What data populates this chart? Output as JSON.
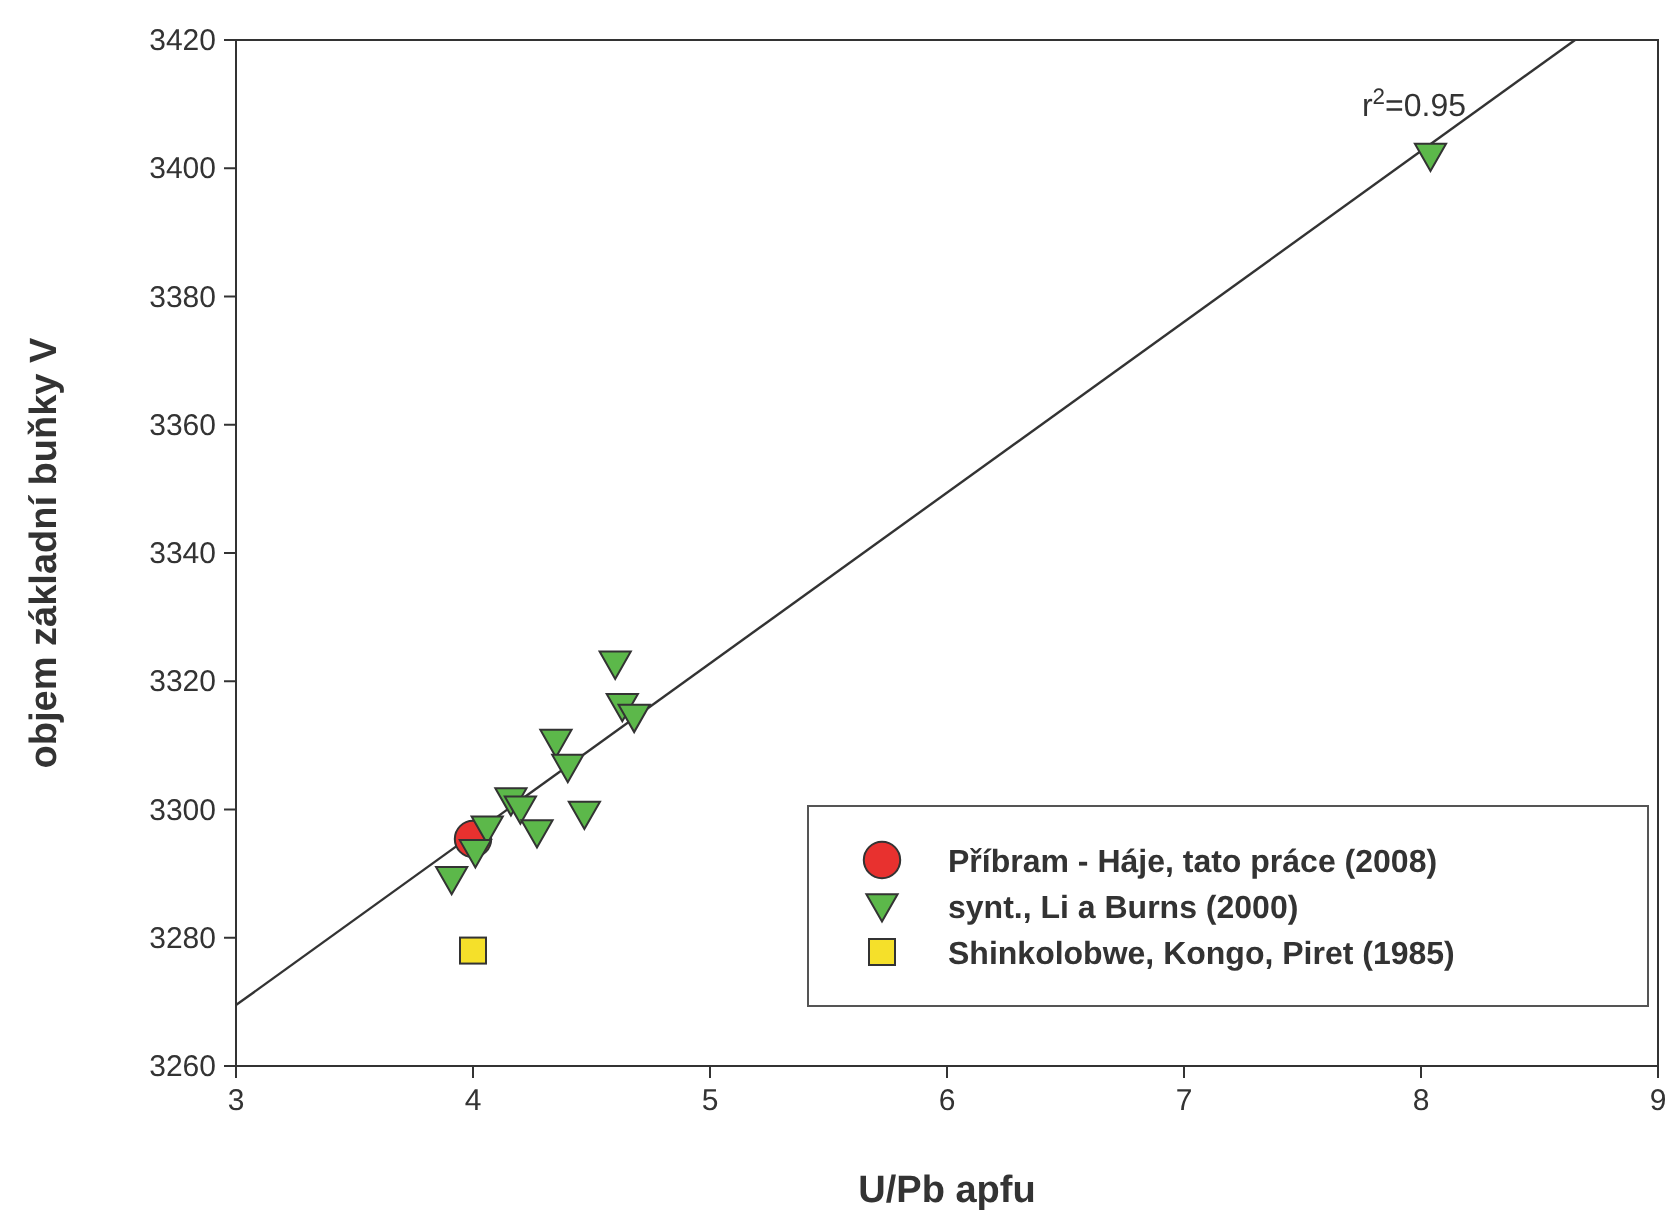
{
  "chart_data": {
    "type": "scatter",
    "xlabel": "U/Pb apfu",
    "ylabel": "objem základní buňky V",
    "xlim": [
      3,
      9
    ],
    "ylim": [
      3260,
      3420
    ],
    "xticks": [
      3,
      4,
      5,
      6,
      7,
      8,
      9
    ],
    "yticks": [
      3260,
      3280,
      3300,
      3320,
      3340,
      3360,
      3380,
      3400,
      3420
    ],
    "grid": false,
    "legend": "bottom right",
    "annotations": [
      "r$^{2}$=0.95"
    ],
    "series": [
      {
        "type": "line",
        "color": "#333333",
        "x": [
          3,
          8.65
        ],
        "values": [
          3269.5,
          3420
        ]
      },
      {
        "name": "Příbram - Háje, tato práce (2008)",
        "color": "#e8312f",
        "marker": "circle",
        "x": [
          4.0
        ],
        "values": [
          3295.4
        ]
      },
      {
        "name": "synt., Li a Burns (2000)",
        "color": "#5cb84a",
        "marker": "triangle",
        "x": [
          4.6,
          4.63,
          4.68,
          4.35,
          4.4,
          4.16,
          4.2,
          4.47,
          4.27,
          4.06,
          4.01,
          3.91,
          8.04
        ],
        "values": [
          3322.8,
          3316.2,
          3314.5,
          3310.6,
          3306.7,
          3301.5,
          3300.2,
          3299.4,
          3296.5,
          3297.1,
          3293.4,
          3289.2,
          3402
        ]
      },
      {
        "name": "Shinkolobwe, Kongo, Piret (1985)",
        "color": "#f5e02a",
        "marker": "square",
        "x": [
          4.0
        ],
        "values": [
          3278
        ]
      }
    ]
  }
}
